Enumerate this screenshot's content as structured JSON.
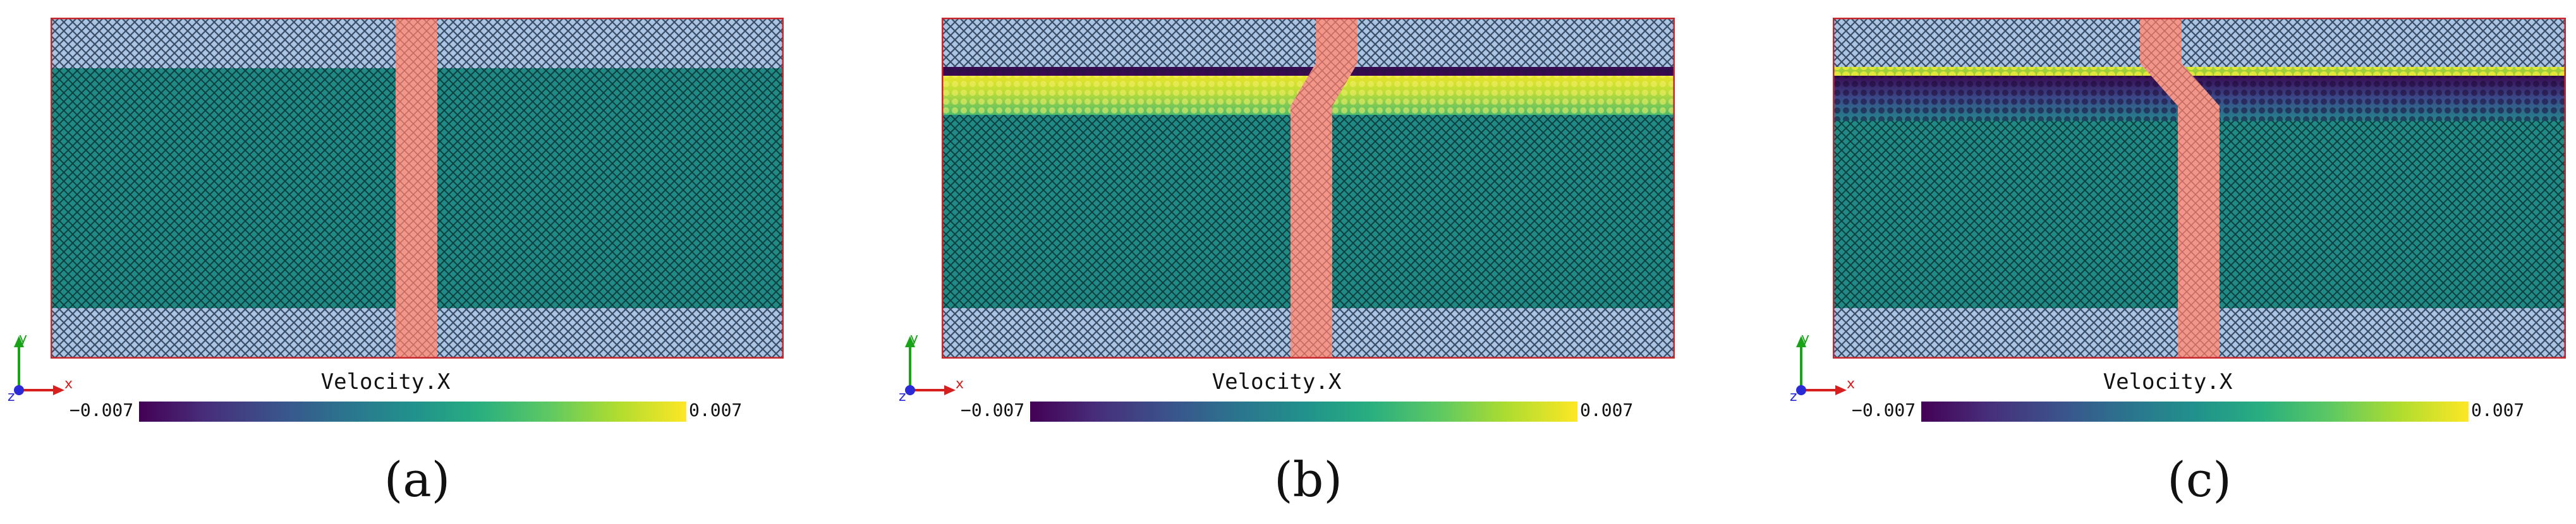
{
  "colorbar": {
    "title": "Velocity.X",
    "min_label": "−0.007",
    "max_label": "0.007"
  },
  "axes": {
    "x": "x",
    "y": "y",
    "z": "z"
  },
  "colors": {
    "slab_blue": "#aac4e4",
    "slab_lattice": "#3a4d66",
    "water": "#1f8a86",
    "water_lattice": "#0f3f3e",
    "marker": "#f2968a",
    "frame": "#c8262a",
    "atom_purple": "#3a0b52",
    "atom_yellow": "#e2e53a"
  },
  "panels": [
    {
      "label": "(a)"
    },
    {
      "label": "(b)"
    },
    {
      "label": "(c)"
    }
  ]
}
